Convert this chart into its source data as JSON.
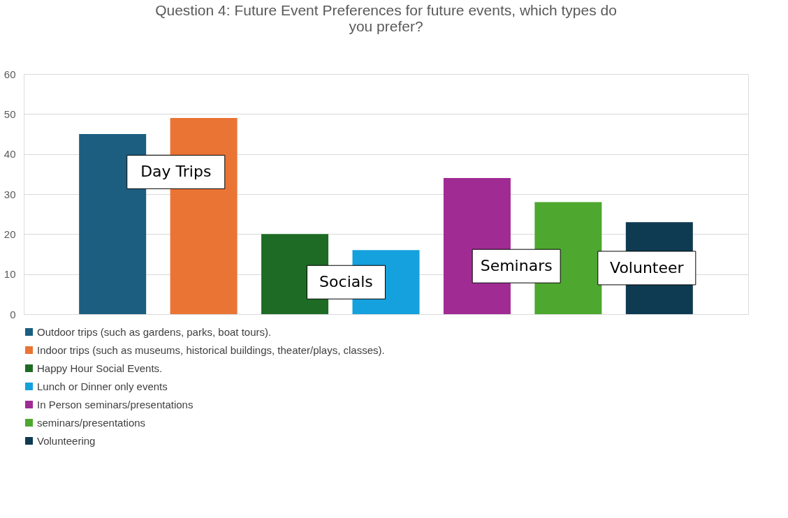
{
  "chart_data": {
    "type": "bar",
    "title": [
      "Question 4: Future Event Preferences for future events, which types do",
      "you prefer?"
    ],
    "categories": [
      null
    ],
    "series": [
      {
        "name": "Outdoor trips (such as gardens, parks, boat tours).",
        "color": "#1b5e80",
        "values": [
          45
        ]
      },
      {
        "name": "Indoor trips (such as museums, historical buildings, theater/plays, classes).",
        "color": "#ea7434",
        "values": [
          49
        ]
      },
      {
        "name": "Happy Hour Social Events.",
        "color": "#1e6b25",
        "values": [
          20
        ]
      },
      {
        "name": "Lunch or Dinner only events",
        "color": "#15a0de",
        "values": [
          16
        ]
      },
      {
        "name": "In Person seminars/presentations",
        "color": "#a02b93",
        "values": [
          34
        ]
      },
      {
        "name": "seminars/presentations",
        "color": "#4ea72e",
        "values": [
          28
        ]
      },
      {
        "name": "Volunteering",
        "color": "#0e3a52",
        "values": [
          23
        ]
      }
    ],
    "annotations": [
      "Day Trips",
      "Socials",
      "Seminars",
      "Volunteer"
    ],
    "ylim": [
      0,
      60
    ],
    "yticks": [
      0,
      10,
      20,
      30,
      40,
      50,
      60
    ],
    "grid": "y",
    "legend": "bottom",
    "tick_labels": "y"
  }
}
